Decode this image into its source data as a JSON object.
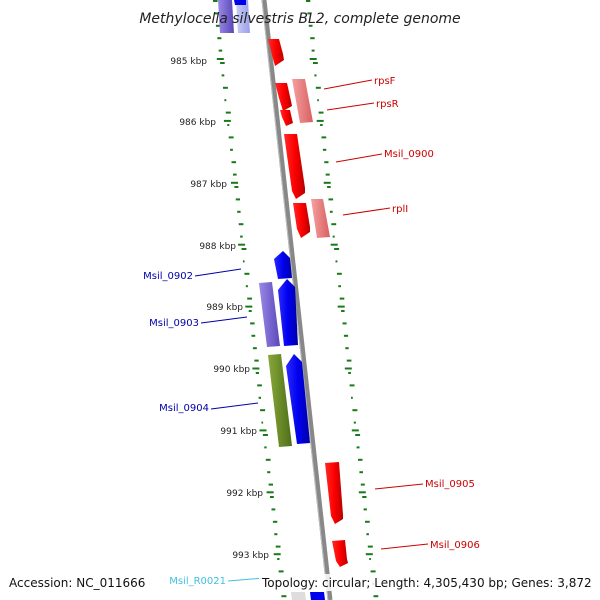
{
  "title": "Methylocella silvestris BL2, complete genome",
  "kbp_ticks": [
    "985 kbp",
    "986 kbp",
    "987 kbp",
    "988 kbp",
    "989 kbp",
    "990 kbp",
    "991 kbp",
    "992 kbp",
    "993 kbp"
  ],
  "gene_labels_forward": [
    "rpsF",
    "rpsR",
    "Msil_0900",
    "rplI",
    "Msil_0905",
    "Msil_0906"
  ],
  "gene_labels_reverse": [
    "Msil_0902",
    "Msil_0903",
    "Msil_0904"
  ],
  "rna_label": "Msil_R0021",
  "footer": {
    "accession": "Accession: NC_011666",
    "topology": "Topology: circular; Length: 4,305,430 bp; Genes: 3,872"
  },
  "colors": {
    "forward_cds": "#ff0000",
    "forward_cds_light": "#f08080",
    "reverse_cds": "#0000ee",
    "reverse_cds_light": "#7b68d8",
    "reverse_cds_green": "#6b8e23",
    "rna": "#40c0e0",
    "backbone": "#888888",
    "gc_marks": "#1a7a1a",
    "forward_label": "#cc0000",
    "reverse_label": "#0000aa"
  },
  "icons": [
    "gene-arrow-icon"
  ]
}
